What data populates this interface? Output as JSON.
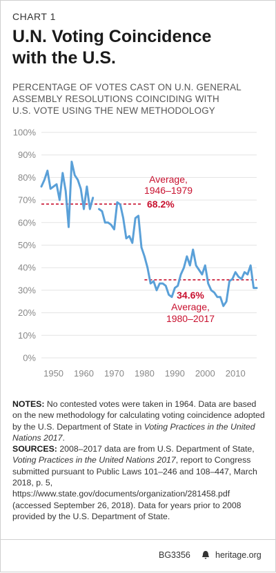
{
  "header": {
    "chart_label": "CHART 1",
    "title_line1": "U.N. Voting Coincidence",
    "title_line2": "with the U.S.",
    "subtitle_line1": "PERCENTAGE OF VOTES CAST ON U.N. GENERAL",
    "subtitle_line2": "ASSEMBLY RESOLUTIONS COINCIDING WITH",
    "subtitle_line3": "U.S. VOTE USING THE NEW METHODOLOGY"
  },
  "chart_data": {
    "type": "line",
    "xlim": [
      1946,
      2017
    ],
    "ylim": [
      0,
      100
    ],
    "y_ticks": [
      "0%",
      "10%",
      "20%",
      "30%",
      "40%",
      "50%",
      "60%",
      "70%",
      "80%",
      "90%",
      "100%"
    ],
    "x_ticks": [
      "1950",
      "1960",
      "1970",
      "1980",
      "1990",
      "2000",
      "2010"
    ],
    "grid": true,
    "series": [
      {
        "color": "#5aa0d8",
        "segments": [
          {
            "x": [
              1946,
              1947,
              1948,
              1949,
              1950,
              1951,
              1952,
              1953,
              1954,
              1955,
              1956,
              1957,
              1958,
              1959,
              1960,
              1961,
              1962,
              1963
            ],
            "y": [
              76,
              79,
              83,
              75,
              76,
              77,
              70,
              82,
              74,
              58,
              87,
              81,
              79,
              75,
              66,
              76,
              66,
              71
            ]
          },
          {
            "x": [
              1965,
              1966,
              1967,
              1968,
              1969,
              1970,
              1971,
              1972,
              1973,
              1974,
              1975,
              1976,
              1977,
              1978,
              1979,
              1980,
              1981,
              1982,
              1983,
              1984,
              1985,
              1986,
              1987,
              1988,
              1989,
              1990,
              1991,
              1992,
              1993,
              1994,
              1995,
              1996,
              1997,
              1998,
              1999,
              2000,
              2001,
              2002,
              2003,
              2004,
              2005,
              2006,
              2007,
              2008,
              2009,
              2010,
              2011,
              2012,
              2013,
              2014,
              2015,
              2016,
              2017
            ],
            "y": [
              66,
              65,
              60,
              60,
              59,
              57,
              69,
              68,
              62,
              53,
              54,
              51,
              62,
              63,
              49,
              45,
              40,
              33,
              34,
              30,
              33,
              33,
              32,
              28,
              27,
              31,
              32,
              37,
              40,
              45,
              41,
              48,
              41,
              39,
              37,
              41,
              33,
              30,
              29,
              27,
              27,
              23,
              25,
              34,
              35,
              38,
              36,
              35,
              38,
              37,
              41,
              31,
              31
            ]
          }
        ]
      }
    ],
    "averages": [
      {
        "label_line1": "Average,",
        "label_line2": "1946–1979",
        "value_label": "68.2%",
        "value": 68.2,
        "from": 1946,
        "to": 1979
      },
      {
        "label_line1": "Average,",
        "label_line2": "1980–2017",
        "value_label": "34.6%",
        "value": 34.6,
        "from": 1980,
        "to": 2017
      }
    ]
  },
  "notes": {
    "notes_heading": "NOTES:",
    "notes_text1": " No contested votes were taken in 1964. Data are based on the new methodology for calculating voting coincidence adopted by the U.S. Department of State in ",
    "notes_italic": "Voting Practices in the United Nations 2017",
    "notes_text2": ".",
    "sources_heading": "SOURCES:",
    "sources_text1": " 2008–2017 data are from U.S. Department of State, ",
    "sources_italic": "Voting Practices in the United Nations 2017",
    "sources_text2": ", report to Congress submitted pursuant to Public Laws 101–246 and 108–447, March 2018, p. 5, https://www.state.gov/documents/organization/281458.pdf (accessed September 26, 2018). Data for years prior to 2008 provided by the U.S. Department of State."
  },
  "footer": {
    "code": "BG3356",
    "brand": "heritage.org"
  }
}
